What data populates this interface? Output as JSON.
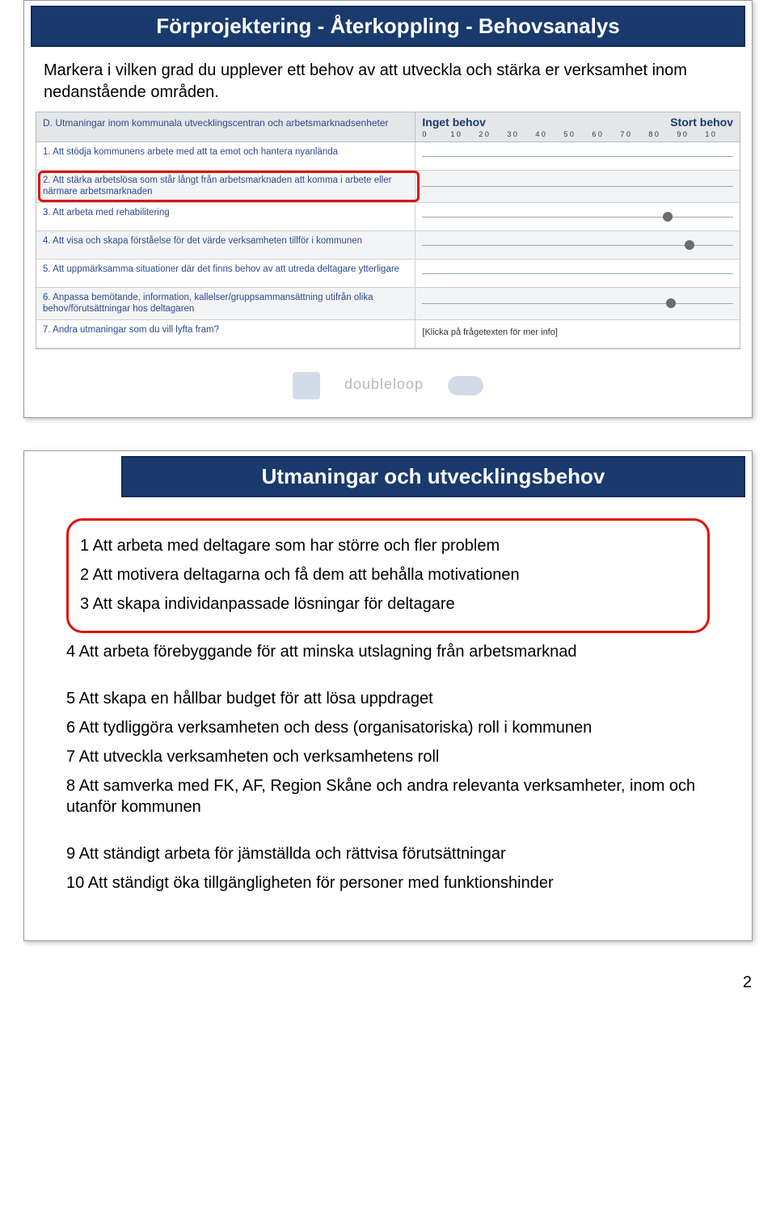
{
  "slide1": {
    "title": "Förprojektering - Återkoppling - Behovsanalys",
    "intro": "Markera i vilken grad du upplever ett behov av att utveckla och stärka er verksamhet inom nedanstående områden.",
    "section_label": "D. Utmaningar inom kommunala utvecklingscentran och arbetsmarknadsenheter",
    "scale_low": "Inget behov",
    "scale_high": "Stort behov",
    "ticks": [
      "0",
      "1 0",
      "2 0",
      "3 0",
      "4 0",
      "5 0",
      "6 0",
      "7 0",
      "8 0",
      "9 0",
      "1 0"
    ],
    "questions": [
      {
        "text": "1. Att stödja kommunens arbete med att ta emot och hantera nyanlända",
        "marker": null
      },
      {
        "text": "2. Att stärka arbetslösa som står långt från arbetsmarknaden att komma i arbete eller närmare arbetsmarknaden",
        "marker": null,
        "highlight": true
      },
      {
        "text": "3. Att arbeta med rehabilitering",
        "marker": 79
      },
      {
        "text": "4. Att visa och skapa förståelse för det värde verksamheten tillför i kommunen",
        "marker": 86
      },
      {
        "text": "5. Att uppmärksamma situationer där det finns behov av att utreda deltagare ytterligare",
        "marker": null
      },
      {
        "text": "6. Anpassa bemötande, information, kallelser/gruppsammansättning utifrån olika behov/förutsättningar hos deltagaren",
        "marker": 80
      },
      {
        "text": "7. Andra utmaningar som du vill lyfta fram?",
        "info": "[Klicka på frågetexten för mer info]"
      }
    ],
    "logos_text": "doubleloop",
    "colors": {
      "header_bg": "#1a3a6e",
      "row_alt_bg": "#f3f4f5",
      "question_color": "#2a4b8d",
      "highlight_border": "#d11",
      "marker_color": "#6b6b6b"
    }
  },
  "slide2": {
    "title": "Utmaningar och utvecklingsbehov",
    "items_boxed": [
      "1 Att arbeta med deltagare som har större och fler problem",
      "2 Att motivera deltagarna och få dem att behålla motivationen",
      "3 Att skapa individanpassade lösningar för deltagare"
    ],
    "items": [
      "4 Att arbeta förebyggande för att minska utslagning från arbetsmarknad",
      "5 Att skapa en hållbar budget för att lösa uppdraget",
      "6 Att tydliggöra verksamheten och dess (organisatoriska) roll i kommunen",
      "7 Att utveckla verksamheten och verksamhetens roll",
      "8 Att samverka med FK, AF, Region Skåne och andra relevanta verksamheter, inom och utanför kommunen",
      "9 Att ständigt arbeta för jämställda och rättvisa förutsättningar",
      "10 Att ständigt öka tillgängligheten för personer med funktionshinder"
    ],
    "spacer_after": [
      0,
      4
    ]
  },
  "page_number": "2"
}
